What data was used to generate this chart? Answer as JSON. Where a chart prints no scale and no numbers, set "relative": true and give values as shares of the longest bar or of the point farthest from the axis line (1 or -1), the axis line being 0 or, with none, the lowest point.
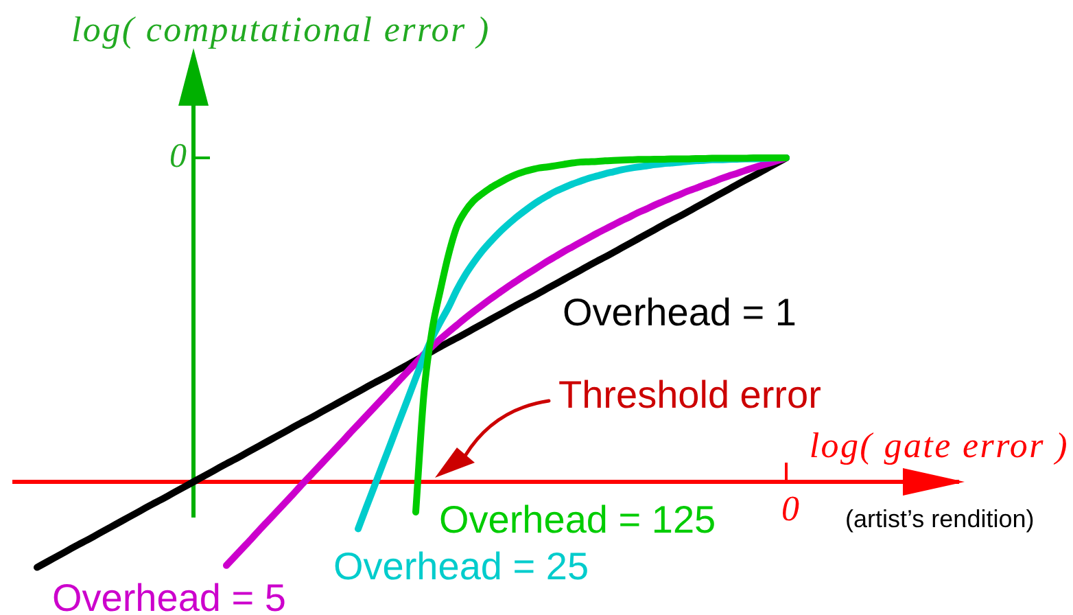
{
  "chart_data": {
    "type": "line",
    "relative": true,
    "xlabel": "log( gate error )",
    "ylabel": "log( computational error )",
    "categories": [
      null,
      null,
      null,
      null,
      null,
      null,
      null,
      null,
      null,
      null,
      null,
      null,
      null,
      null,
      null,
      null,
      null,
      null,
      null,
      null,
      null,
      null,
      null,
      null,
      null,
      null,
      null,
      null,
      null,
      null,
      null,
      null,
      null,
      null,
      null,
      null,
      null,
      null,
      null,
      null,
      null,
      null,
      null,
      null,
      null,
      null,
      null,
      null,
      null,
      null,
      null,
      null,
      null,
      null,
      null,
      null,
      null,
      null,
      null,
      null,
      null,
      null,
      null,
      null,
      null,
      null,
      null,
      null,
      null,
      null,
      null,
      null,
      null,
      null,
      null,
      null,
      null,
      null,
      null,
      null,
      null,
      null,
      null,
      null,
      null,
      null,
      null,
      null,
      null,
      null,
      null,
      null,
      null,
      null,
      null,
      null,
      null,
      null,
      null,
      null,
      null,
      null,
      null,
      null,
      null,
      null,
      null,
      null,
      null,
      null,
      null,
      null,
      null,
      null,
      null,
      null
    ],
    "series": [
      {
        "name": "Overhead = 1",
        "color": "#000000",
        "values": [
          null,
          null,
          null,
          -0.264,
          -0.25,
          -0.236,
          -0.222,
          -0.208,
          -0.194,
          -0.181,
          -0.167,
          -0.153,
          -0.139,
          -0.125,
          -0.111,
          -0.097,
          -0.083,
          -0.069,
          -0.056,
          -0.042,
          -0.028,
          -0.014,
          0,
          0.014,
          0.028,
          0.042,
          0.056,
          0.069,
          0.083,
          0.097,
          0.111,
          0.125,
          0.139,
          0.153,
          0.167,
          0.181,
          0.194,
          0.208,
          0.222,
          0.236,
          0.25,
          0.264,
          0.278,
          0.292,
          0.306,
          0.319,
          0.333,
          0.347,
          0.361,
          0.375,
          0.389,
          0.403,
          0.417,
          0.431,
          0.444,
          0.458,
          0.472,
          0.486,
          0.5,
          0.514,
          0.528,
          0.542,
          0.556,
          0.569,
          0.583,
          0.597,
          0.611,
          0.625,
          0.639,
          0.653,
          0.667,
          0.681,
          0.694,
          0.708,
          0.722,
          0.736,
          0.75,
          0.764,
          0.778,
          0.792,
          0.806,
          0.819,
          0.833,
          0.847,
          0.861,
          0.875,
          0.889,
          0.903,
          0.917,
          0.931,
          0.944,
          0.958,
          0.972,
          0.986,
          1,
          null,
          null,
          null,
          null,
          null,
          null,
          null,
          null,
          null,
          null,
          null,
          null,
          null,
          null,
          null,
          null,
          null,
          null,
          null,
          null,
          null
        ]
      },
      {
        "name": "Overhead = 5",
        "color": "#cc00cc",
        "values": [
          null,
          null,
          null,
          null,
          null,
          null,
          null,
          null,
          null,
          null,
          null,
          null,
          null,
          null,
          null,
          null,
          null,
          null,
          null,
          null,
          null,
          null,
          null,
          null,
          null,
          null,
          -0.258,
          -0.231,
          -0.204,
          -0.177,
          -0.149,
          -0.122,
          -0.095,
          -0.068,
          -0.041,
          -0.013,
          0.014,
          0.041,
          0.068,
          0.095,
          0.122,
          0.15,
          0.177,
          0.204,
          0.231,
          0.258,
          0.285,
          0.313,
          0.34,
          0.367,
          0.394,
          0.418,
          0.441,
          0.463,
          0.484,
          0.505,
          0.525,
          0.544,
          0.563,
          0.581,
          0.599,
          0.616,
          0.633,
          0.649,
          0.665,
          0.681,
          0.696,
          0.711,
          0.725,
          0.739,
          0.753,
          0.767,
          0.78,
          0.793,
          0.806,
          0.818,
          0.831,
          0.842,
          0.854,
          0.865,
          0.876,
          0.886,
          0.897,
          0.906,
          0.916,
          0.925,
          0.935,
          0.944,
          0.952,
          0.961,
          0.969,
          0.977,
          0.984,
          0.992,
          1,
          null,
          null,
          null,
          null,
          null,
          null,
          null,
          null,
          null,
          null,
          null,
          null,
          null,
          null,
          null,
          null,
          null,
          null,
          null,
          null,
          null
        ]
      },
      {
        "name": "Overhead = 25",
        "color": "#00cccc",
        "values": [
          null,
          null,
          null,
          null,
          null,
          null,
          null,
          null,
          null,
          null,
          null,
          null,
          null,
          null,
          null,
          null,
          null,
          null,
          null,
          null,
          null,
          null,
          null,
          null,
          null,
          null,
          null,
          null,
          null,
          null,
          null,
          null,
          null,
          null,
          null,
          null,
          null,
          null,
          null,
          null,
          null,
          null,
          -0.145,
          -0.078,
          -0.012,
          0.055,
          0.121,
          0.188,
          0.254,
          0.321,
          0.387,
          0.445,
          0.494,
          0.54,
          0.593,
          0.638,
          0.676,
          0.71,
          0.739,
          0.766,
          0.79,
          0.812,
          0.832,
          0.851,
          0.868,
          0.883,
          0.897,
          0.908,
          0.919,
          0.928,
          0.937,
          0.944,
          0.951,
          0.957,
          0.963,
          0.968,
          0.972,
          0.975,
          0.979,
          0.982,
          0.984,
          0.986,
          0.989,
          0.991,
          0.992,
          0.994,
          0.994,
          0.995,
          0.996,
          0.997,
          0.997,
          0.998,
          0.999,
          1,
          1,
          null,
          null,
          null,
          null,
          null,
          null,
          null,
          null,
          null,
          null,
          null,
          null,
          null,
          null,
          null,
          null,
          null,
          null,
          null,
          null,
          null
        ]
      },
      {
        "name": "Overhead = 125",
        "color": "#00cc00",
        "values": [
          null,
          null,
          null,
          null,
          null,
          null,
          null,
          null,
          null,
          null,
          null,
          null,
          null,
          null,
          null,
          null,
          null,
          null,
          null,
          null,
          null,
          null,
          null,
          null,
          null,
          null,
          null,
          null,
          null,
          null,
          null,
          null,
          null,
          null,
          null,
          null,
          null,
          null,
          null,
          null,
          null,
          null,
          null,
          null,
          null,
          null,
          null,
          null,
          null,
          -0.093,
          0.275,
          0.47,
          0.593,
          0.703,
          0.788,
          0.835,
          0.867,
          0.888,
          0.906,
          0.921,
          0.935,
          0.947,
          0.956,
          0.963,
          0.969,
          0.972,
          0.976,
          0.98,
          0.984,
          0.987,
          0.988,
          0.989,
          0.991,
          0.992,
          0.993,
          0.994,
          0.995,
          0.995,
          0.996,
          0.996,
          0.997,
          0.997,
          0.997,
          0.998,
          0.998,
          0.999,
          0.999,
          0.999,
          0.999,
          0.999,
          1,
          1,
          1,
          1,
          1,
          null,
          null,
          null,
          null,
          null,
          null,
          null,
          null,
          null,
          null,
          null,
          null,
          null,
          null,
          null,
          null,
          null,
          null,
          null,
          null,
          null
        ]
      }
    ],
    "ref_lines": [
      {
        "axis": "y",
        "value": 0,
        "color": "#ff0000"
      }
    ],
    "annotations": [
      "0",
      "0",
      "Threshold error",
      "(artist’s rendition)"
    ]
  }
}
